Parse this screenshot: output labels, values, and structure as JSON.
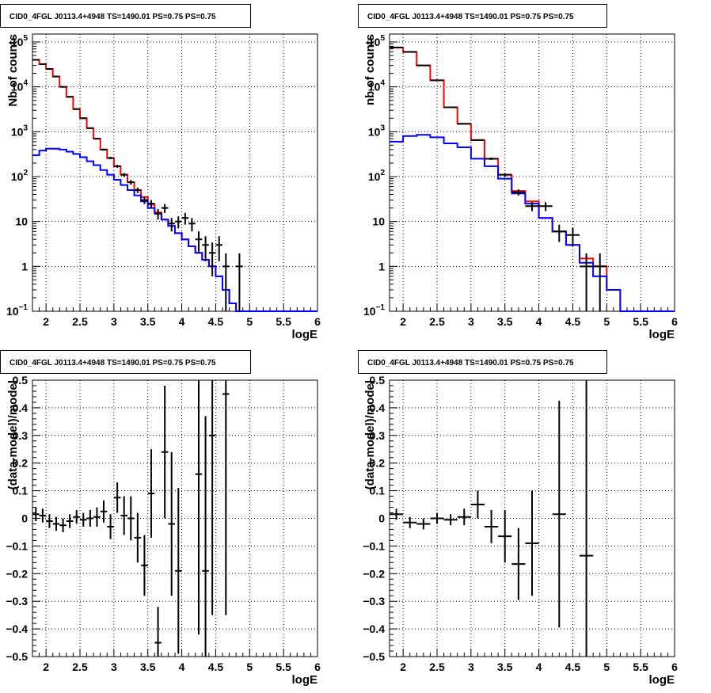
{
  "chart_data": [
    {
      "type": "line",
      "title": "CID0_4FGL J0113.4+4948 TS=1490.01 PS=0.75 PS=0.75",
      "xlabel": "logE",
      "ylabel": "Nb of counts",
      "xlim": [
        1.8,
        6.0
      ],
      "ylim": [
        0.1,
        150000
      ],
      "ylog": true,
      "grid": true,
      "x_ticks": [
        "2",
        "2.5",
        "3",
        "3.5",
        "4",
        "4.5",
        "5",
        "5.5",
        "6"
      ],
      "y_ticks": [
        {
          "v": 0.1,
          "base": "10",
          "exp": "−1"
        },
        {
          "v": 1,
          "label": "1"
        },
        {
          "v": 10,
          "label": "10"
        },
        {
          "v": 100,
          "base": "10",
          "exp": "2"
        },
        {
          "v": 1000,
          "base": "10",
          "exp": "3"
        },
        {
          "v": 10000,
          "base": "10",
          "exp": "4"
        },
        {
          "v": 100000,
          "base": "10",
          "exp": "5"
        }
      ],
      "bin_edges": [
        1.8,
        1.9,
        2.0,
        2.1,
        2.2,
        2.3,
        2.4,
        2.5,
        2.6,
        2.7,
        2.8,
        2.9,
        3.0,
        3.1,
        3.2,
        3.3,
        3.4,
        3.5,
        3.6,
        3.7,
        3.8,
        3.9,
        4.0,
        4.1,
        4.2,
        4.3,
        4.4,
        4.5,
        4.6,
        4.7,
        4.8,
        4.9,
        5.0,
        5.1,
        5.2,
        5.3,
        5.4,
        5.5,
        5.6,
        5.7,
        5.8,
        5.9,
        6.0
      ],
      "series": [
        {
          "color": "#ff0000",
          "values": [
            40000,
            32000,
            25000,
            17000,
            10000,
            6000,
            3200,
            2000,
            1200,
            700,
            400,
            260,
            170,
            110,
            75,
            50,
            35,
            24,
            16,
            11,
            8,
            5.5,
            4,
            2.8,
            2.0,
            1.4,
            1.0,
            0.6,
            0.3,
            0.15,
            0.1,
            0.1,
            0.1,
            0.1,
            0.1,
            0.1,
            0.1,
            0.1,
            0.1,
            0.1,
            0.1,
            0.1
          ]
        },
        {
          "color": "#0000ff",
          "values": [
            300,
            380,
            420,
            420,
            400,
            360,
            320,
            270,
            220,
            180,
            140,
            110,
            85,
            65,
            50,
            38,
            28,
            20,
            15,
            11,
            8,
            5.5,
            4,
            2.8,
            2.0,
            1.4,
            1.0,
            0.6,
            0.3,
            0.15,
            0.1,
            0.1,
            0.1,
            0.1,
            0.1,
            0.1,
            0.1,
            0.1,
            0.1,
            0.1,
            0.1,
            0.1
          ]
        }
      ],
      "points": [
        {
          "x": 1.85,
          "y": 40000,
          "err": 200
        },
        {
          "x": 1.95,
          "y": 32000,
          "err": 180
        },
        {
          "x": 2.05,
          "y": 25000,
          "err": 160
        },
        {
          "x": 2.15,
          "y": 17000,
          "err": 130
        },
        {
          "x": 2.25,
          "y": 10000,
          "err": 100
        },
        {
          "x": 2.35,
          "y": 6000,
          "err": 77
        },
        {
          "x": 2.45,
          "y": 3200,
          "err": 57
        },
        {
          "x": 2.55,
          "y": 2000,
          "err": 45
        },
        {
          "x": 2.65,
          "y": 1200,
          "err": 35
        },
        {
          "x": 2.75,
          "y": 700,
          "err": 26
        },
        {
          "x": 2.85,
          "y": 400,
          "err": 20
        },
        {
          "x": 2.95,
          "y": 260,
          "err": 16
        },
        {
          "x": 3.05,
          "y": 170,
          "err": 13
        },
        {
          "x": 3.15,
          "y": 110,
          "err": 11
        },
        {
          "x": 3.25,
          "y": 75,
          "err": 9
        },
        {
          "x": 3.35,
          "y": 50,
          "err": 7
        },
        {
          "x": 3.45,
          "y": 30,
          "err": 5.5
        },
        {
          "x": 3.55,
          "y": 25,
          "err": 5
        },
        {
          "x": 3.65,
          "y": 15,
          "err": 4
        },
        {
          "x": 3.75,
          "y": 20,
          "err": 4.5
        },
        {
          "x": 3.85,
          "y": 9,
          "err": 3
        },
        {
          "x": 3.95,
          "y": 10,
          "err": 3
        },
        {
          "x": 4.05,
          "y": 12,
          "err": 3.5
        },
        {
          "x": 4.15,
          "y": 9,
          "err": 3
        },
        {
          "x": 4.25,
          "y": 4,
          "err": 2
        },
        {
          "x": 4.35,
          "y": 3,
          "err": 1.7
        },
        {
          "x": 4.45,
          "y": 2,
          "err": 1.4
        },
        {
          "x": 4.55,
          "y": 3,
          "err": 1.7
        },
        {
          "x": 4.65,
          "y": 1,
          "err": 0.95
        },
        {
          "x": 4.85,
          "y": 1,
          "err": 0.95
        }
      ]
    },
    {
      "type": "line",
      "title": "CID0_4FGL J0113.4+4948 TS=1490.01 PS=0.75 PS=0.75",
      "xlabel": "logE",
      "ylabel": "nb of counts",
      "xlim": [
        1.8,
        6.0
      ],
      "ylim": [
        0.1,
        150000
      ],
      "ylog": true,
      "grid": true,
      "x_ticks": [
        "2",
        "2.5",
        "3",
        "3.5",
        "4",
        "4.5",
        "5",
        "5.5",
        "6"
      ],
      "y_ticks": [
        {
          "v": 0.1,
          "base": "10",
          "exp": "−1"
        },
        {
          "v": 1,
          "label": "1"
        },
        {
          "v": 10,
          "label": "10"
        },
        {
          "v": 100,
          "base": "10",
          "exp": "2"
        },
        {
          "v": 1000,
          "base": "10",
          "exp": "3"
        },
        {
          "v": 10000,
          "base": "10",
          "exp": "4"
        },
        {
          "v": 100000,
          "base": "10",
          "exp": "5"
        }
      ],
      "bin_edges": [
        1.8,
        2.0,
        2.2,
        2.4,
        2.6,
        2.8,
        3.0,
        3.2,
        3.4,
        3.6,
        3.8,
        4.0,
        4.2,
        4.4,
        4.6,
        4.8,
        5.0,
        5.2,
        5.4,
        5.6,
        5.8,
        6.0
      ],
      "series": [
        {
          "color": "#ff0000",
          "values": [
            75000,
            60000,
            30000,
            14000,
            3500,
            1500,
            650,
            250,
            110,
            48,
            28,
            12,
            6,
            3,
            1.5,
            1.0,
            0.3,
            0.1,
            0.1,
            0.1,
            0.1
          ]
        },
        {
          "color": "#0000ff",
          "values": [
            600,
            800,
            850,
            750,
            550,
            450,
            250,
            170,
            90,
            42,
            25,
            12,
            6,
            3,
            1.2,
            0.6,
            0.3,
            0.1,
            0.1,
            0.1,
            0.1
          ]
        }
      ],
      "points": [
        {
          "x": 1.9,
          "y": 75000,
          "err": 270
        },
        {
          "x": 2.1,
          "y": 60000,
          "err": 245
        },
        {
          "x": 2.3,
          "y": 30000,
          "err": 175
        },
        {
          "x": 2.5,
          "y": 14000,
          "err": 120
        },
        {
          "x": 2.7,
          "y": 3500,
          "err": 60
        },
        {
          "x": 2.9,
          "y": 1500,
          "err": 39
        },
        {
          "x": 3.1,
          "y": 650,
          "err": 25
        },
        {
          "x": 3.3,
          "y": 250,
          "err": 16
        },
        {
          "x": 3.5,
          "y": 110,
          "err": 10
        },
        {
          "x": 3.7,
          "y": 45,
          "err": 7
        },
        {
          "x": 3.9,
          "y": 22,
          "err": 5
        },
        {
          "x": 4.1,
          "y": 22,
          "err": 5
        },
        {
          "x": 4.3,
          "y": 6,
          "err": 2.5
        },
        {
          "x": 4.5,
          "y": 5,
          "err": 2.2
        },
        {
          "x": 4.7,
          "y": 1,
          "err": 0.95
        },
        {
          "x": 4.9,
          "y": 1,
          "err": 0.95
        }
      ]
    },
    {
      "type": "scatter",
      "title": "CID0_4FGL J0113.4+4948 TS=1490.01 PS=0.75 PS=0.75",
      "xlabel": "logE",
      "ylabel": "(data-model)/model",
      "xlim": [
        1.8,
        6.0
      ],
      "ylim": [
        -0.5,
        0.5
      ],
      "ylog": false,
      "grid": true,
      "x_ticks": [
        "2",
        "2.5",
        "3",
        "3.5",
        "4",
        "4.5",
        "5",
        "5.5",
        "6"
      ],
      "y_ticks": [
        {
          "v": -0.5,
          "label": "−0.5"
        },
        {
          "v": -0.4,
          "label": "−0.4"
        },
        {
          "v": -0.3,
          "label": "−0.3"
        },
        {
          "v": -0.2,
          "label": "−0.2"
        },
        {
          "v": -0.1,
          "label": "−0.1"
        },
        {
          "v": 0,
          "label": "0"
        },
        {
          "v": 0.1,
          "label": "0.1"
        },
        {
          "v": 0.2,
          "label": "0.2"
        },
        {
          "v": 0.3,
          "label": "0.3"
        },
        {
          "v": 0.4,
          "label": "0.4"
        },
        {
          "v": 0.5,
          "label": "0.5"
        }
      ],
      "bin_width": 0.1,
      "points": [
        {
          "x": 1.85,
          "y": 0.015,
          "err": 0.025
        },
        {
          "x": 1.95,
          "y": 0.01,
          "err": 0.025
        },
        {
          "x": 2.05,
          "y": -0.01,
          "err": 0.025
        },
        {
          "x": 2.15,
          "y": -0.02,
          "err": 0.025
        },
        {
          "x": 2.25,
          "y": -0.025,
          "err": 0.025
        },
        {
          "x": 2.35,
          "y": -0.01,
          "err": 0.025
        },
        {
          "x": 2.45,
          "y": 0.005,
          "err": 0.025
        },
        {
          "x": 2.55,
          "y": -0.005,
          "err": 0.025
        },
        {
          "x": 2.65,
          "y": 0.0,
          "err": 0.03
        },
        {
          "x": 2.75,
          "y": 0.005,
          "err": 0.035
        },
        {
          "x": 2.85,
          "y": 0.025,
          "err": 0.04
        },
        {
          "x": 2.95,
          "y": -0.03,
          "err": 0.045
        },
        {
          "x": 3.05,
          "y": 0.075,
          "err": 0.055
        },
        {
          "x": 3.15,
          "y": 0.01,
          "err": 0.07
        },
        {
          "x": 3.25,
          "y": 0.0,
          "err": 0.08
        },
        {
          "x": 3.35,
          "y": -0.07,
          "err": 0.09
        },
        {
          "x": 3.45,
          "y": -0.17,
          "err": 0.11
        },
        {
          "x": 3.55,
          "y": 0.09,
          "err": 0.16
        },
        {
          "x": 3.65,
          "y": -0.45,
          "err": 0.13
        },
        {
          "x": 3.75,
          "y": 0.24,
          "err": 0.24
        },
        {
          "x": 3.85,
          "y": -0.02,
          "err": 0.26
        },
        {
          "x": 3.95,
          "y": -0.19,
          "err": 0.3
        },
        {
          "x": 4.25,
          "y": 0.16,
          "err": 0.58
        },
        {
          "x": 4.35,
          "y": -0.19,
          "err": 0.56
        },
        {
          "x": 4.45,
          "y": 0.3,
          "err": 0.65
        },
        {
          "x": 4.65,
          "y": 0.45,
          "err": 0.8
        }
      ]
    },
    {
      "type": "scatter",
      "title": "CID0_4FGL J0113.4+4948 TS=1490.01 PS=0.75 PS=0.75",
      "xlabel": "logE",
      "ylabel": "(data-model)/model",
      "xlim": [
        1.8,
        6.0
      ],
      "ylim": [
        -0.5,
        0.5
      ],
      "ylog": false,
      "grid": true,
      "x_ticks": [
        "2",
        "2.5",
        "3",
        "3.5",
        "4",
        "4.5",
        "5",
        "5.5",
        "6"
      ],
      "y_ticks": [
        {
          "v": -0.5,
          "label": "−0.5"
        },
        {
          "v": -0.4,
          "label": "−0.4"
        },
        {
          "v": -0.3,
          "label": "−0.3"
        },
        {
          "v": -0.2,
          "label": "−0.2"
        },
        {
          "v": -0.1,
          "label": "−0.1"
        },
        {
          "v": 0,
          "label": "0"
        },
        {
          "v": 0.1,
          "label": "0.1"
        },
        {
          "v": 0.2,
          "label": "0.2"
        },
        {
          "v": 0.3,
          "label": "0.3"
        },
        {
          "v": 0.4,
          "label": "0.4"
        },
        {
          "v": 0.5,
          "label": "0.5"
        }
      ],
      "bin_width": 0.2,
      "points": [
        {
          "x": 1.9,
          "y": 0.015,
          "err": 0.02
        },
        {
          "x": 2.1,
          "y": -0.015,
          "err": 0.02
        },
        {
          "x": 2.3,
          "y": -0.02,
          "err": 0.02
        },
        {
          "x": 2.5,
          "y": 0.0,
          "err": 0.02
        },
        {
          "x": 2.7,
          "y": -0.005,
          "err": 0.02
        },
        {
          "x": 2.9,
          "y": 0.005,
          "err": 0.03
        },
        {
          "x": 3.1,
          "y": 0.05,
          "err": 0.05
        },
        {
          "x": 3.3,
          "y": -0.03,
          "err": 0.06
        },
        {
          "x": 3.5,
          "y": -0.065,
          "err": 0.095
        },
        {
          "x": 3.7,
          "y": -0.165,
          "err": 0.13
        },
        {
          "x": 3.9,
          "y": -0.09,
          "err": 0.19
        },
        {
          "x": 4.3,
          "y": 0.015,
          "err": 0.41
        },
        {
          "x": 4.7,
          "y": -0.135,
          "err": 0.72
        }
      ]
    }
  ]
}
